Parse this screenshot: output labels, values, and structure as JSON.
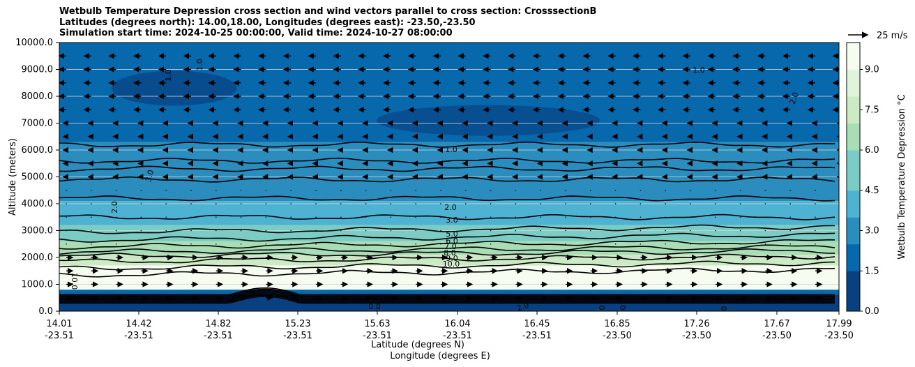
{
  "title_lines": [
    "Wetbulb Temperature Depression cross section and wind vectors parallel to cross section: CrosssectionB",
    "Latitudes (degrees north): 14.00,18.00, Longitudes (degrees east): -23.50,-23.50",
    "Simulation start time: 2024-10-25 00:00:00, Valid time: 2024-10-27 08:00:00"
  ],
  "chart_data": {
    "type": "heatmap",
    "ylabel": "Altitude (meters)",
    "xlabel": "Latitude (degrees N)",
    "xlabel2": "Longitude (degrees E)",
    "ylim": [
      0,
      10000
    ],
    "y_ticks": [
      "0.0",
      "1000.0",
      "2000.0",
      "3000.0",
      "4000.0",
      "5000.0",
      "6000.0",
      "7000.0",
      "8000.0",
      "9000.0",
      "10000.0"
    ],
    "x_ticks_lat": [
      "14.01",
      "14.42",
      "14.82",
      "15.23",
      "15.63",
      "16.04",
      "16.45",
      "16.85",
      "17.26",
      "17.67",
      "17.99"
    ],
    "x_ticks_lon": [
      "-23.51",
      "-23.51",
      "-23.51",
      "-23.51",
      "-23.51",
      "-23.51",
      "-23.51",
      "-23.50",
      "-23.50",
      "-23.50",
      "-23.50"
    ],
    "grid": "horizontal",
    "colorbar": {
      "label": "Wetbulb Temperature Depression °C",
      "range": [
        0,
        10
      ],
      "ticks": [
        "0.0",
        "1.5",
        "3.0",
        "4.5",
        "6.0",
        "7.5",
        "9.0"
      ],
      "colors": [
        "#084081",
        "#0868ac",
        "#2b8cbe",
        "#4eb3d3",
        "#7bccc4",
        "#a8ddb5",
        "#ccebc5",
        "#e0f3db",
        "#f7fcf0"
      ]
    },
    "quiver_key": "25 m/s",
    "contour_labels": [
      "1.0",
      "1.0",
      "1.0",
      "1.0",
      "2.0",
      "2.0",
      "2.0",
      "3.0",
      "3.0",
      "5.0",
      "6.0",
      "7.0",
      "8.0",
      "9.0",
      "10.0",
      "10.0",
      "0.0",
      "2.0",
      "0",
      "0",
      "0"
    ]
  }
}
